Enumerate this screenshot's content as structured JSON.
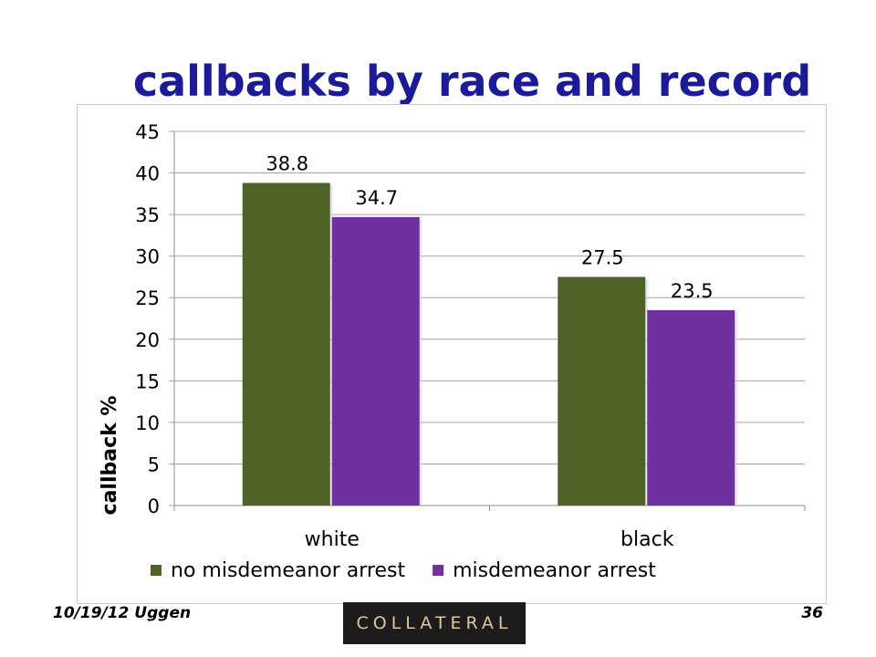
{
  "slide": {
    "title": "callbacks by race and record",
    "footer_left": "10/19/12 Uggen",
    "page_number": "36",
    "logo_text": "COLLATERAL"
  },
  "chart_data": {
    "type": "bar",
    "categories": [
      "white",
      "black"
    ],
    "series": [
      {
        "name": "no misdemeanor arrest",
        "values": [
          38.8,
          27.5
        ],
        "color": "#4f6228"
      },
      {
        "name": "misdemeanor arrest",
        "values": [
          34.7,
          23.5
        ],
        "color": "#7030a0"
      }
    ],
    "ylabel": "callback %",
    "ylim": [
      0,
      45
    ],
    "yticks": [
      0,
      5,
      10,
      15,
      20,
      25,
      30,
      35,
      40,
      45
    ],
    "data_labels": true,
    "grid": true,
    "legend": "bottom"
  }
}
